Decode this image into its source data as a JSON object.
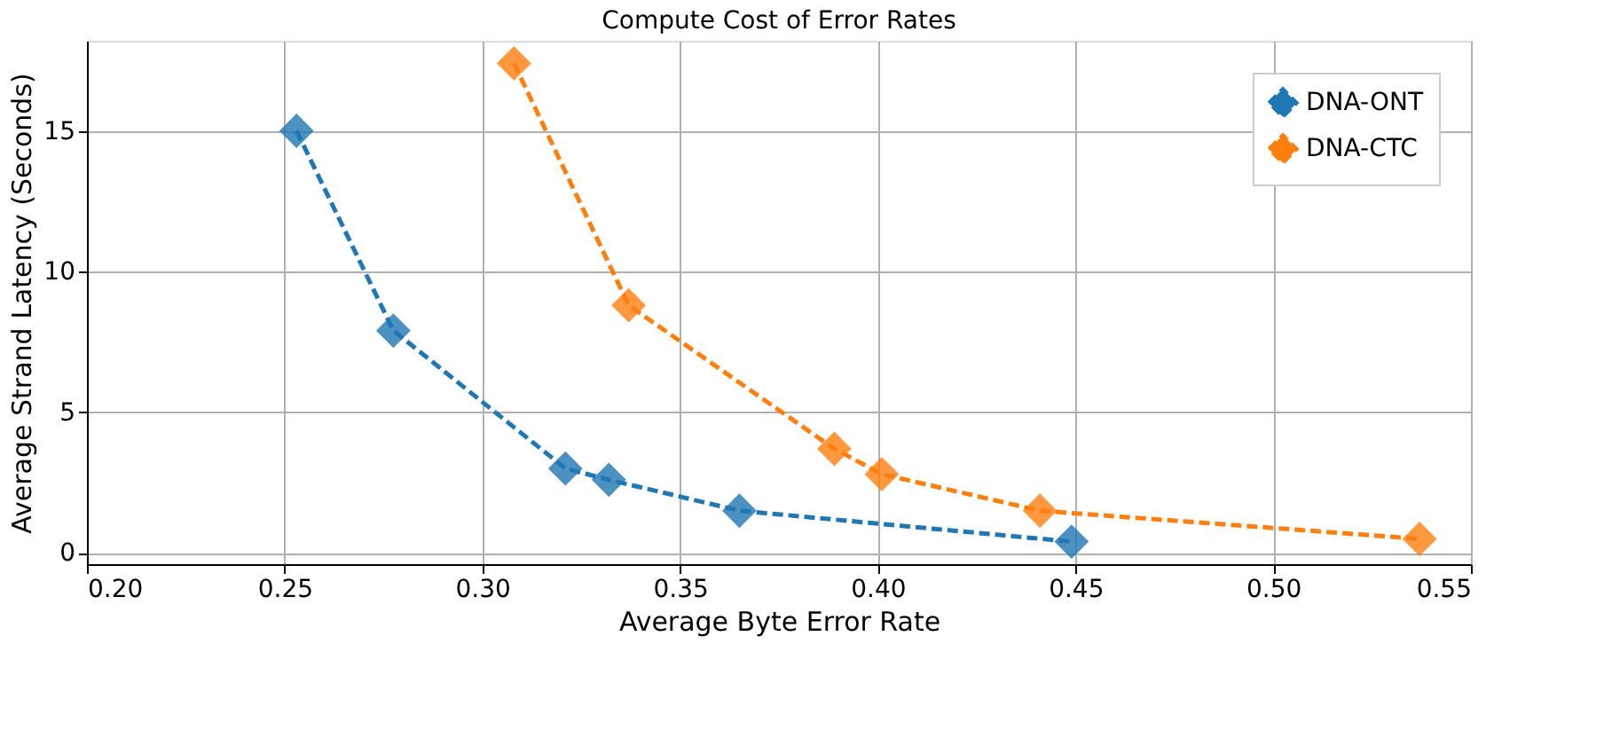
{
  "chart_data": {
    "type": "line",
    "title": "Compute Cost of Error Rates",
    "xlabel": "Average Byte Error Rate",
    "ylabel": "Average Strand Latency (Seconds)",
    "series": [
      {
        "name": "DNA-ONT",
        "color": "#1f77b4",
        "x": [
          0.253,
          0.2775,
          0.321,
          0.332,
          0.365,
          0.449
        ],
        "values": [
          15.0,
          7.9,
          3.0,
          2.6,
          1.5,
          0.4
        ]
      },
      {
        "name": "DNA-CTC",
        "color": "#ff7f0e",
        "x": [
          0.308,
          0.337,
          0.389,
          0.401,
          0.441,
          0.537
        ],
        "values": [
          17.4,
          8.8,
          3.7,
          2.8,
          1.5,
          0.5
        ]
      }
    ],
    "xlim": [
      0.2,
      0.55
    ],
    "xticks": [
      {
        "value": 0.2,
        "label": "0.20"
      },
      {
        "value": 0.25,
        "label": "0.25"
      },
      {
        "value": 0.3,
        "label": "0.30"
      },
      {
        "value": 0.35,
        "label": "0.35"
      },
      {
        "value": 0.4,
        "label": "0.40"
      },
      {
        "value": 0.45,
        "label": "0.45"
      },
      {
        "value": 0.5,
        "label": "0.50"
      },
      {
        "value": 0.55,
        "label": "0.55"
      }
    ],
    "ylim": [
      -0.4,
      18.2
    ],
    "yticks": [
      0,
      5,
      10,
      15
    ],
    "grid": true,
    "legend": "top right",
    "marker": "diamond",
    "line_style": "dashed"
  }
}
